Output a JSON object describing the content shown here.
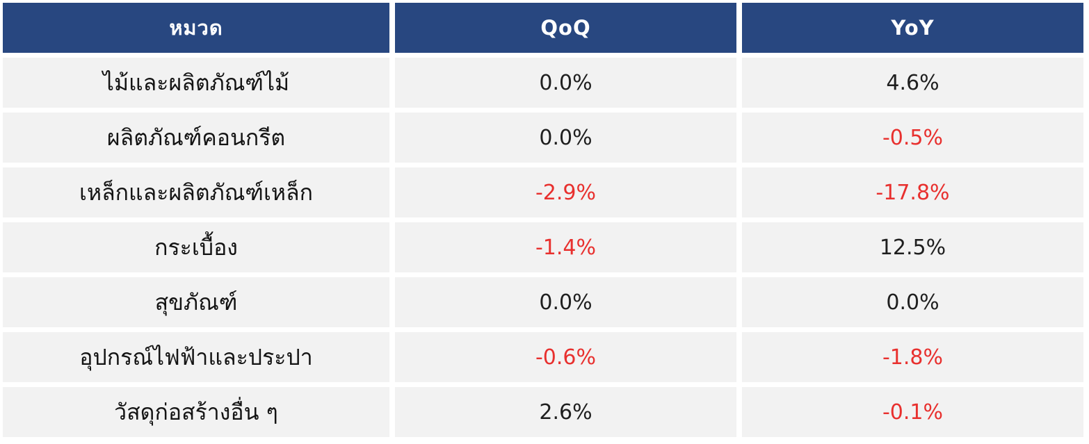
{
  "table": {
    "headers": [
      "หมวด",
      "QoQ",
      "YoY"
    ],
    "rows": [
      {
        "category": "ไม้และผลิตภัณฑ์ไม้",
        "qoq": "0.0%",
        "yoy": "4.6%"
      },
      {
        "category": "ผลิตภัณฑ์คอนกรีต",
        "qoq": "0.0%",
        "yoy": "-0.5%"
      },
      {
        "category": "เหล็กและผลิตภัณฑ์เหล็ก",
        "qoq": "-2.9%",
        "yoy": "-17.8%"
      },
      {
        "category": "กระเบื้อง",
        "qoq": "-1.4%",
        "yoy": "12.5%"
      },
      {
        "category": "สุขภัณฑ์",
        "qoq": "0.0%",
        "yoy": "0.0%"
      },
      {
        "category": "อุปกรณ์ไฟฟ้าและประปา",
        "qoq": "-0.6%",
        "yoy": "-1.8%"
      },
      {
        "category": "วัสดุก่อสร้างอื่น ๆ",
        "qoq": "2.6%",
        "yoy": "-0.1%"
      }
    ]
  },
  "colors": {
    "header_bg": "#284780",
    "header_text": "#ffffff",
    "cell_bg": "#f2f2f2",
    "negative_text": "#e8302e",
    "text": "#1f1f1f"
  }
}
